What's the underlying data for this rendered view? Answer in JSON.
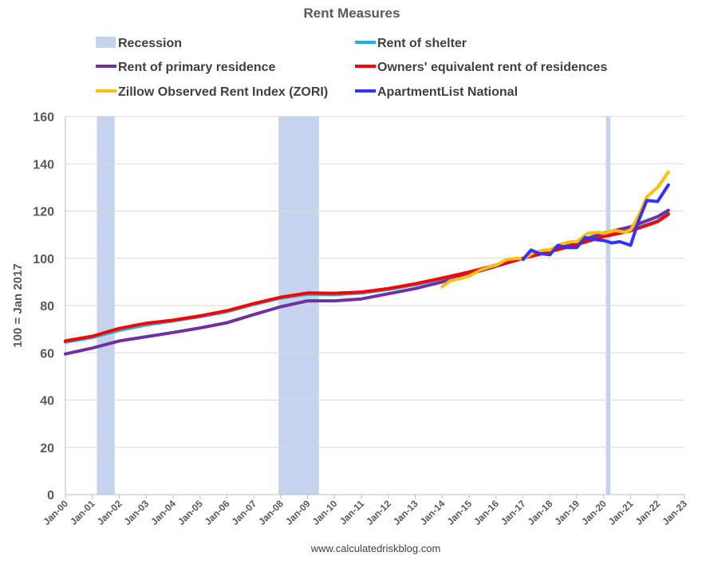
{
  "chart_data": {
    "type": "line",
    "title": "Rent Measures",
    "ylabel": "100 = Jan 2017",
    "xlabel": "",
    "source": "www.calculatedriskblog.com",
    "ylim": [
      0,
      160
    ],
    "xlim": [
      2000,
      2023
    ],
    "yticks": [
      0,
      20,
      40,
      60,
      80,
      100,
      120,
      140,
      160
    ],
    "xtick_labels": [
      "Jan-00",
      "Jan-01",
      "Jan-02",
      "Jan-03",
      "Jan-04",
      "Jan-05",
      "Jan-06",
      "Jan-07",
      "Jan-08",
      "Jan-09",
      "Jan-10",
      "Jan-11",
      "Jan-12",
      "Jan-13",
      "Jan-14",
      "Jan-15",
      "Jan-16",
      "Jan-17",
      "Jan-18",
      "Jan-19",
      "Jan-20",
      "Jan-21",
      "Jan-22",
      "Jan-23"
    ],
    "grid": true,
    "legend_position": "top",
    "recessions": [
      [
        2001.17,
        2001.83
      ],
      [
        2007.92,
        2009.42
      ],
      [
        2020.08,
        2020.25
      ]
    ],
    "legend": [
      {
        "label": "Recession",
        "color": "#c5d3ee",
        "kind": "box"
      },
      {
        "label": "Rent of shelter",
        "color": "#1cb0e8",
        "kind": "line"
      },
      {
        "label": "Rent of primary residence",
        "color": "#7030a0",
        "kind": "line"
      },
      {
        "label": "Owners' equivalent rent of residences",
        "color": "#ff0000",
        "kind": "line"
      },
      {
        "label": "Zillow Observed Rent Index (ZORI)",
        "color": "#ffc000",
        "kind": "line"
      },
      {
        "label": "ApartmentList National",
        "color": "#3333ff",
        "kind": "line"
      }
    ],
    "series": [
      {
        "name": "Rent of shelter",
        "color": "#1cb0e8",
        "x": [
          2000,
          2001,
          2002,
          2003,
          2004,
          2005,
          2006,
          2007,
          2008,
          2009,
          2010,
          2011,
          2012,
          2013,
          2014,
          2015,
          2016,
          2017,
          2018,
          2019,
          2020,
          2021,
          2022,
          2022.4
        ],
        "y": [
          64.5,
          66.5,
          69.5,
          71.8,
          73.5,
          75.3,
          77.4,
          80.5,
          83.2,
          84.8,
          84.6,
          85.3,
          86.8,
          88.8,
          91.3,
          94.0,
          97.0,
          100.0,
          103.0,
          106.1,
          109.5,
          112.0,
          115.8,
          119.0
        ]
      },
      {
        "name": "Rent of primary residence",
        "color": "#7030a0",
        "x": [
          2000,
          2001,
          2002,
          2003,
          2004,
          2005,
          2006,
          2007,
          2008,
          2009,
          2010,
          2011,
          2012,
          2013,
          2014,
          2015,
          2016,
          2017,
          2018,
          2019,
          2020,
          2021,
          2022,
          2022.4
        ],
        "y": [
          59.5,
          62.0,
          65.0,
          66.8,
          68.6,
          70.5,
          72.7,
          76.2,
          79.5,
          82.0,
          82.0,
          82.8,
          85.0,
          87.2,
          90.0,
          93.3,
          96.6,
          100.0,
          103.5,
          107.0,
          110.7,
          113.3,
          117.6,
          120.3
        ]
      },
      {
        "name": "Owners' equivalent rent of residences",
        "color": "#ff0000",
        "x": [
          2000,
          2001,
          2002,
          2003,
          2004,
          2005,
          2006,
          2007,
          2008,
          2009,
          2010,
          2011,
          2012,
          2013,
          2014,
          2015,
          2016,
          2017,
          2018,
          2019,
          2020,
          2021,
          2022,
          2022.4
        ],
        "y": [
          65.0,
          67.0,
          70.3,
          72.5,
          73.8,
          75.6,
          77.8,
          80.8,
          83.5,
          85.3,
          85.2,
          85.7,
          87.2,
          89.2,
          91.6,
          94.2,
          97.1,
          100.0,
          102.8,
          105.8,
          109.2,
          111.6,
          115.5,
          118.6
        ]
      },
      {
        "name": "Zillow Observed Rent Index (ZORI)",
        "color": "#ffc000",
        "x": [
          2014,
          2014.3,
          2014.7,
          2015,
          2015.4,
          2015.8,
          2016,
          2016.4,
          2016.8,
          2017,
          2017.4,
          2017.8,
          2018,
          2018.4,
          2018.8,
          2019,
          2019.4,
          2019.8,
          2020,
          2020.4,
          2020.8,
          2021,
          2021.3,
          2021.6,
          2022,
          2022.4
        ],
        "y": [
          88.0,
          90.5,
          91.5,
          92.5,
          95.0,
          96.5,
          97.0,
          99.5,
          100.0,
          99.5,
          102.5,
          103.5,
          103.5,
          106.0,
          107.0,
          107.0,
          110.5,
          111.0,
          110.5,
          111.8,
          111.0,
          112.0,
          118.0,
          126.0,
          130.0,
          136.5
        ]
      },
      {
        "name": "ApartmentList National",
        "color": "#3333ff",
        "x": [
          2017,
          2017.3,
          2017.6,
          2018,
          2018.3,
          2018.6,
          2019,
          2019.3,
          2019.6,
          2020,
          2020.3,
          2020.6,
          2021,
          2021.3,
          2021.6,
          2022,
          2022.4
        ],
        "y": [
          99.5,
          103.5,
          102.0,
          101.5,
          105.5,
          104.5,
          104.5,
          108.8,
          108.0,
          107.5,
          106.5,
          107.0,
          105.5,
          116.0,
          124.5,
          124.0,
          131.0
        ]
      }
    ]
  }
}
